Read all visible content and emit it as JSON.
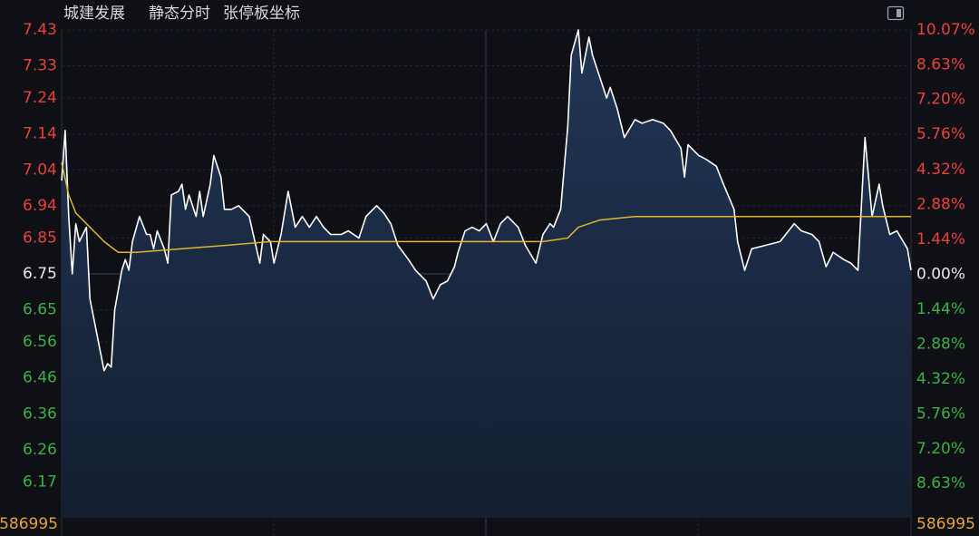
{
  "chart_data": {
    "type": "line",
    "title": "城建发展",
    "mode_labels": [
      "静态分时",
      "张停板坐标"
    ],
    "xlim": [
      0,
      240
    ],
    "ylim": [
      6.07,
      7.43
    ],
    "yticks": [
      7.43,
      7.33,
      7.24,
      7.14,
      7.04,
      6.94,
      6.85,
      6.75,
      6.65,
      6.56,
      6.46,
      6.36,
      6.26,
      6.17
    ],
    "y2lim": [
      -10.05,
      10.07
    ],
    "y2ticks": [
      {
        "value": 10.07,
        "label": "10.07%"
      },
      {
        "value": 8.63,
        "label": "8.63%"
      },
      {
        "value": 7.2,
        "label": "7.20%"
      },
      {
        "value": 5.76,
        "label": "5.76%"
      },
      {
        "value": 4.32,
        "label": "4.32%"
      },
      {
        "value": 2.88,
        "label": "2.88%"
      },
      {
        "value": 1.44,
        "label": "1.44%"
      },
      {
        "value": 0,
        "label": "0.00%"
      },
      {
        "value": -1.44,
        "label": "1.44%"
      },
      {
        "value": -2.88,
        "label": "2.88%"
      },
      {
        "value": -4.32,
        "label": "4.32%"
      },
      {
        "value": -5.76,
        "label": "5.76%"
      },
      {
        "value": -7.2,
        "label": "7.20%"
      },
      {
        "value": -8.63,
        "label": "8.63%"
      }
    ],
    "volume_label": "586995",
    "grid": true,
    "up_color": "#e8413c",
    "down_color": "#3cb043",
    "flat_color": "#e8e8e8",
    "volume_color": "#e6a23c",
    "series": [
      {
        "color": "#ffffff",
        "fill": true,
        "x": [
          0,
          1,
          2,
          3,
          4,
          5,
          7,
          8,
          10,
          12,
          13,
          14,
          15,
          17,
          18,
          19,
          20,
          22,
          24,
          25,
          26,
          27,
          29,
          30,
          31,
          33,
          34,
          35,
          36,
          38,
          39,
          40,
          42,
          43,
          45,
          46,
          48,
          50,
          53,
          56,
          57,
          59,
          60,
          62,
          64,
          66,
          68,
          70,
          72,
          74,
          76,
          79,
          81,
          84,
          86,
          89,
          91,
          93,
          95,
          98,
          100,
          103,
          105,
          107,
          109,
          111,
          112,
          114,
          116,
          118,
          120,
          122,
          124,
          126,
          129,
          131,
          134,
          136,
          138,
          139,
          141,
          143,
          144,
          146,
          147,
          149,
          150,
          152,
          154,
          155,
          157,
          159,
          162,
          164,
          167,
          170,
          172,
          175,
          176,
          177,
          180,
          182,
          185,
          187,
          190,
          191,
          193,
          195,
          199,
          203,
          207,
          209,
          212,
          214,
          216,
          218,
          221,
          223,
          225,
          227,
          229,
          231,
          232,
          234,
          236,
          239,
          240
        ],
        "values": [
          7.01,
          7.15,
          6.91,
          6.75,
          6.89,
          6.84,
          6.88,
          6.68,
          6.58,
          6.48,
          6.5,
          6.49,
          6.65,
          6.76,
          6.79,
          6.76,
          6.84,
          6.91,
          6.86,
          6.86,
          6.82,
          6.87,
          6.82,
          6.78,
          6.97,
          6.98,
          7.0,
          6.93,
          6.97,
          6.91,
          6.98,
          6.91,
          7.0,
          7.08,
          7.02,
          6.93,
          6.93,
          6.94,
          6.91,
          6.78,
          6.86,
          6.84,
          6.78,
          6.86,
          6.98,
          6.88,
          6.91,
          6.88,
          6.91,
          6.88,
          6.86,
          6.86,
          6.87,
          6.85,
          6.91,
          6.94,
          6.92,
          6.89,
          6.83,
          6.79,
          6.76,
          6.73,
          6.68,
          6.72,
          6.73,
          6.77,
          6.81,
          6.87,
          6.88,
          6.87,
          6.89,
          6.84,
          6.89,
          6.91,
          6.88,
          6.83,
          6.78,
          6.86,
          6.89,
          6.88,
          6.93,
          7.16,
          7.36,
          7.43,
          7.31,
          7.41,
          7.36,
          7.3,
          7.24,
          7.27,
          7.21,
          7.13,
          7.18,
          7.17,
          7.18,
          7.17,
          7.15,
          7.1,
          7.02,
          7.11,
          7.08,
          7.07,
          7.05,
          7.0,
          6.93,
          6.84,
          6.76,
          6.82,
          6.83,
          6.84,
          6.89,
          6.87,
          6.86,
          6.84,
          6.77,
          6.81,
          6.79,
          6.78,
          6.76,
          7.13,
          6.91,
          7.0,
          6.94,
          6.86,
          6.87,
          6.82,
          6.76
        ]
      },
      {
        "color": "#e0b72a",
        "fill": false,
        "x": [
          0,
          2,
          4,
          8,
          12,
          16,
          21,
          34,
          47,
          59,
          85,
          111,
          136,
          143,
          146,
          152,
          162,
          175,
          187,
          213,
          240
        ],
        "values": [
          7.06,
          6.97,
          6.92,
          6.88,
          6.84,
          6.81,
          6.81,
          6.82,
          6.83,
          6.84,
          6.84,
          6.84,
          6.84,
          6.85,
          6.88,
          6.9,
          6.91,
          6.91,
          6.91,
          6.91,
          6.91
        ]
      }
    ]
  }
}
